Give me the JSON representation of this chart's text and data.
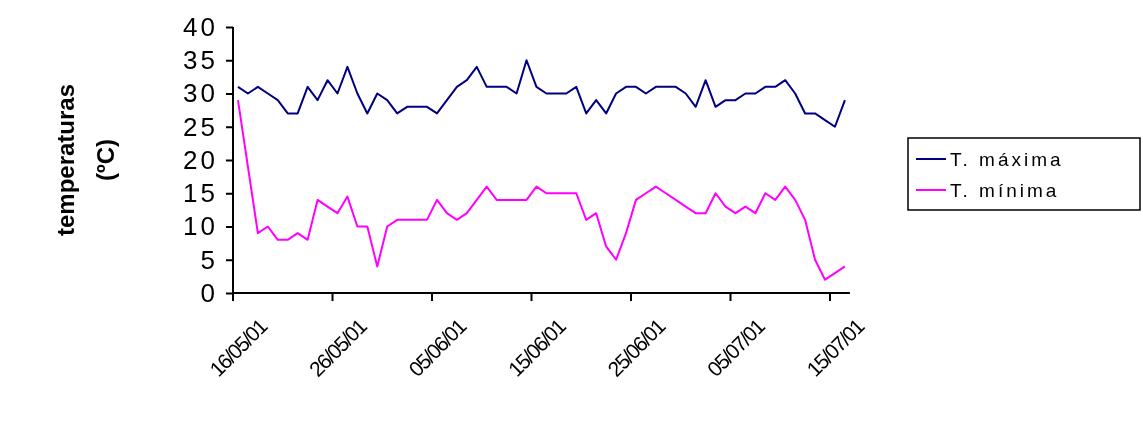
{
  "chart_data": {
    "type": "line",
    "ylabel": "temperaturas (ºC)",
    "categories": [
      "16/05/01",
      null,
      null,
      null,
      null,
      null,
      null,
      null,
      null,
      null,
      "26/05/01",
      null,
      null,
      null,
      null,
      null,
      null,
      null,
      null,
      null,
      "05/06/01",
      null,
      null,
      null,
      null,
      null,
      null,
      null,
      null,
      null,
      "15/06/01",
      null,
      null,
      null,
      null,
      null,
      null,
      null,
      null,
      null,
      "25/06/01",
      null,
      null,
      null,
      null,
      null,
      null,
      null,
      null,
      null,
      "05/07/01",
      null,
      null,
      null,
      null,
      null,
      null,
      null,
      null,
      null,
      "15/07/01",
      null
    ],
    "series": [
      {
        "name": "T. máxima",
        "color": "#000080",
        "values": [
          31,
          30,
          31,
          30,
          29,
          27,
          27,
          31,
          29,
          32,
          30,
          34,
          30,
          27,
          30,
          29,
          27,
          28,
          28,
          28,
          27,
          29,
          31,
          32,
          34,
          31,
          31,
          31,
          30,
          35,
          31,
          30,
          30,
          30,
          31,
          27,
          29,
          27,
          30,
          31,
          31,
          30,
          31,
          31,
          31,
          30,
          28,
          32,
          28,
          29,
          29,
          30,
          30,
          31,
          31,
          32,
          30,
          27,
          27,
          26,
          25,
          29
        ]
      },
      {
        "name": "T. mínima",
        "color": "#ff00ff",
        "values": [
          29,
          19,
          9,
          10,
          8,
          8,
          9,
          8,
          14,
          13,
          12,
          14.5,
          10,
          10,
          4,
          10,
          11,
          11,
          11,
          11,
          14,
          12,
          11,
          12,
          14,
          16,
          14,
          14,
          14,
          14,
          16,
          15,
          15,
          15,
          15,
          11,
          12,
          7,
          5,
          9,
          14,
          15,
          16,
          15,
          14,
          13,
          12,
          12,
          15,
          13,
          12,
          13,
          12,
          15,
          14,
          16,
          14,
          11,
          5,
          2,
          3,
          4
        ]
      }
    ],
    "ylim": [
      0,
      40
    ],
    "yticks": [
      0,
      5,
      10,
      15,
      20,
      25,
      30,
      35,
      40
    ],
    "grid": false,
    "legend": "right",
    "line_style": "solid",
    "marker": "none"
  }
}
